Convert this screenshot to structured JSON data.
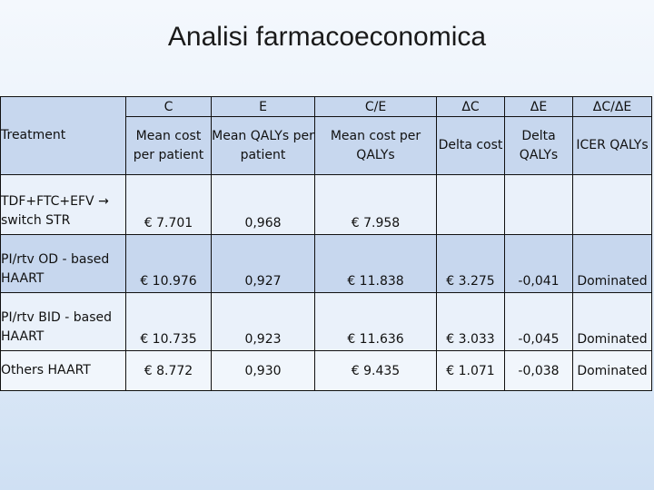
{
  "title": "Analisi farmacoeconomica",
  "table": {
    "codes": [
      "C",
      "E",
      "C/E",
      "ΔC",
      "ΔE",
      "ΔC/ΔE"
    ],
    "treatment_header": "Treatment",
    "headers": [
      "Mean cost per patient",
      "Mean QALYs per patient",
      "Mean cost per QALYs",
      "Delta cost",
      "Delta QALYs",
      "ICER QALYs"
    ],
    "rows": [
      {
        "treatment": "TDF+FTC+EFV → switch STR",
        "cost": "€ 7.701",
        "qalys": "0,968",
        "ce": "€ 7.958",
        "dc": "",
        "de": "",
        "icer": ""
      },
      {
        "treatment": "PI/rtv OD - based HAART",
        "cost": "€ 10.976",
        "qalys": "0,927",
        "ce": "€ 11.838",
        "dc": "€ 3.275",
        "de": "-0,041",
        "icer": "Dominated"
      },
      {
        "treatment": "PI/rtv BID - based HAART",
        "cost": "€ 10.735",
        "qalys": "0,923",
        "ce": "€ 11.636",
        "dc": "€ 3.033",
        "de": "-0,045",
        "icer": "Dominated"
      },
      {
        "treatment": "Others HAART",
        "cost": "€ 8.772",
        "qalys": "0,930",
        "ce": "€ 9.435",
        "dc": "€ 1.071",
        "de": "-0,038",
        "icer": "Dominated"
      }
    ]
  }
}
